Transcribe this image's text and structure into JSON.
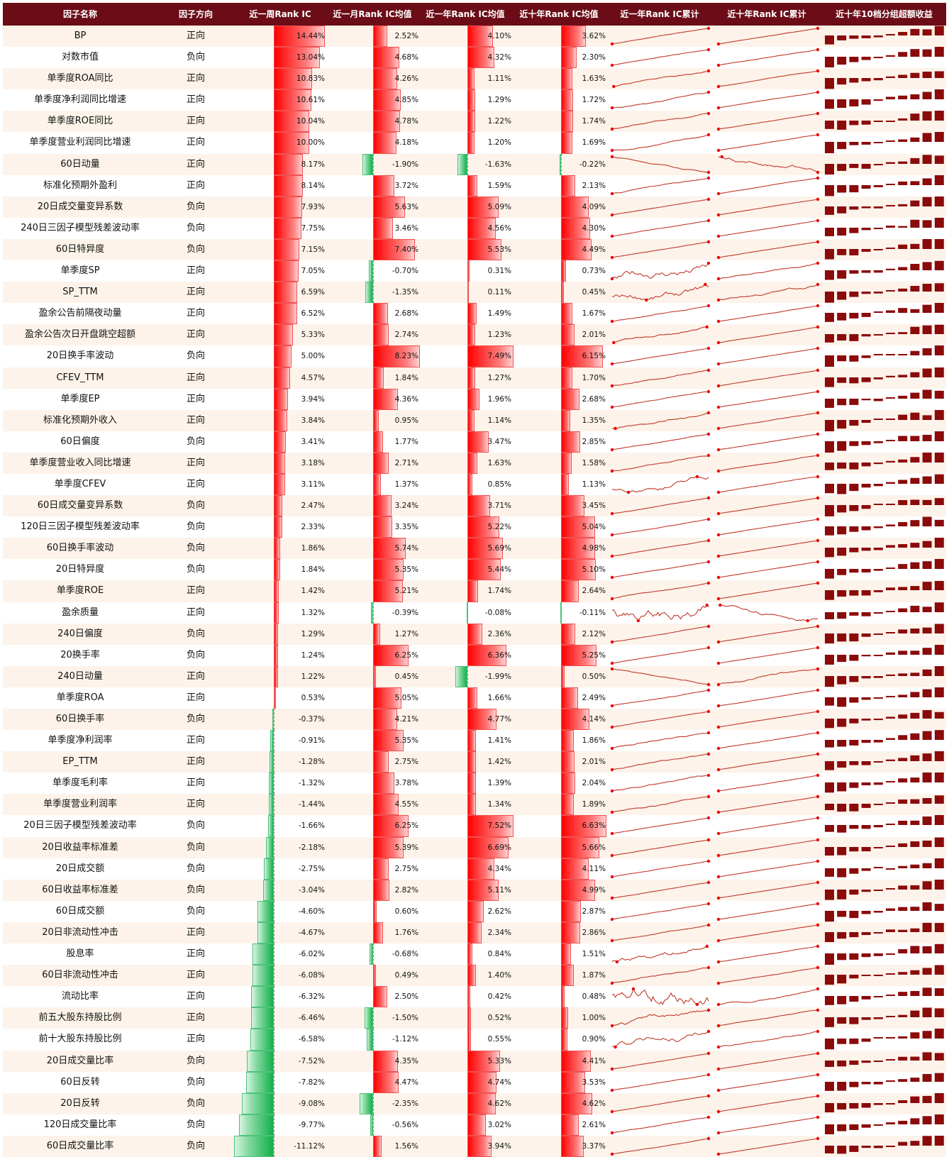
{
  "chart_data": {
    "type": "table",
    "columns": [
      "因子名称",
      "因子方向",
      "近一周Rank IC",
      "近一月Rank IC均值",
      "近一年Rank IC均值",
      "近十年Rank IC均值",
      "近一年Rank IC累计",
      "近十年Rank IC累计",
      "近十年10档分组超额收益"
    ],
    "colors": {
      "header": "#6b0c17",
      "positive": "#ff0000",
      "negative": "#12b04a",
      "sparkline": "#c0392b",
      "decile": "#8b0a0a",
      "row_alt": "#fdf3ea"
    },
    "rows": [
      [
        "BP",
        "正向",
        "14.44%",
        "2.52%",
        "4.10%",
        "3.62%"
      ],
      [
        "对数市值",
        "负向",
        "13.04%",
        "4.68%",
        "4.32%",
        "2.30%"
      ],
      [
        "单季度ROA同比",
        "正向",
        "10.83%",
        "4.26%",
        "1.11%",
        "1.63%"
      ],
      [
        "单季度净利润同比增速",
        "正向",
        "10.61%",
        "4.85%",
        "1.29%",
        "1.72%"
      ],
      [
        "单季度ROE同比",
        "正向",
        "10.04%",
        "4.78%",
        "1.22%",
        "1.74%"
      ],
      [
        "单季度营业利润同比增速",
        "正向",
        "10.00%",
        "4.18%",
        "1.20%",
        "1.69%"
      ],
      [
        "60日动量",
        "正向",
        "8.17%",
        "-1.90%",
        "-1.63%",
        "-0.22%"
      ],
      [
        "标准化预期外盈利",
        "正向",
        "8.14%",
        "3.72%",
        "1.59%",
        "2.13%"
      ],
      [
        "20日成交量变异系数",
        "负向",
        "7.93%",
        "5.63%",
        "5.09%",
        "4.09%"
      ],
      [
        "240日三因子模型残差波动率",
        "负向",
        "7.75%",
        "3.46%",
        "4.56%",
        "4.30%"
      ],
      [
        "60日特异度",
        "负向",
        "7.15%",
        "7.40%",
        "5.53%",
        "4.49%"
      ],
      [
        "单季度SP",
        "正向",
        "7.05%",
        "-0.70%",
        "0.31%",
        "0.73%"
      ],
      [
        "SP_TTM",
        "正向",
        "6.59%",
        "-1.35%",
        "0.11%",
        "0.45%"
      ],
      [
        "盈余公告前隔夜动量",
        "正向",
        "6.52%",
        "2.68%",
        "1.49%",
        "1.67%"
      ],
      [
        "盈余公告次日开盘跳空超额",
        "正向",
        "5.33%",
        "2.74%",
        "1.23%",
        "2.01%"
      ],
      [
        "20日换手率波动",
        "负向",
        "5.00%",
        "8.23%",
        "7.49%",
        "6.15%"
      ],
      [
        "CFEV_TTM",
        "正向",
        "4.57%",
        "1.84%",
        "1.27%",
        "1.70%"
      ],
      [
        "单季度EP",
        "正向",
        "3.94%",
        "4.36%",
        "1.96%",
        "2.68%"
      ],
      [
        "标准化预期外收入",
        "正向",
        "3.84%",
        "0.95%",
        "1.14%",
        "1.35%"
      ],
      [
        "60日偏度",
        "负向",
        "3.41%",
        "1.77%",
        "3.47%",
        "2.85%"
      ],
      [
        "单季度营业收入同比增速",
        "正向",
        "3.18%",
        "2.71%",
        "1.63%",
        "1.58%"
      ],
      [
        "单季度CFEV",
        "正向",
        "3.11%",
        "1.37%",
        "0.85%",
        "1.13%"
      ],
      [
        "60日成交量变异系数",
        "负向",
        "2.47%",
        "3.24%",
        "3.71%",
        "3.45%"
      ],
      [
        "120日三因子模型残差波动率",
        "负向",
        "2.33%",
        "3.35%",
        "5.22%",
        "5.04%"
      ],
      [
        "60日换手率波动",
        "负向",
        "1.86%",
        "5.74%",
        "5.69%",
        "4.98%"
      ],
      [
        "20日特异度",
        "负向",
        "1.84%",
        "5.35%",
        "5.44%",
        "5.10%"
      ],
      [
        "单季度ROE",
        "正向",
        "1.42%",
        "5.21%",
        "1.74%",
        "2.64%"
      ],
      [
        "盈余质量",
        "正向",
        "1.32%",
        "-0.39%",
        "-0.08%",
        "-0.11%"
      ],
      [
        "240日偏度",
        "负向",
        "1.29%",
        "1.27%",
        "2.36%",
        "2.12%"
      ],
      [
        "20换手率",
        "负向",
        "1.24%",
        "6.25%",
        "6.36%",
        "5.25%"
      ],
      [
        "240日动量",
        "正向",
        "1.22%",
        "0.45%",
        "-1.99%",
        "0.50%"
      ],
      [
        "单季度ROA",
        "正向",
        "0.53%",
        "5.05%",
        "1.66%",
        "2.49%"
      ],
      [
        "60日换手率",
        "负向",
        "-0.37%",
        "4.21%",
        "4.77%",
        "4.14%"
      ],
      [
        "单季度净利润率",
        "正向",
        "-0.91%",
        "5.35%",
        "1.41%",
        "1.86%"
      ],
      [
        "EP_TTM",
        "正向",
        "-1.28%",
        "2.75%",
        "1.42%",
        "2.01%"
      ],
      [
        "单季度毛利率",
        "正向",
        "-1.32%",
        "3.78%",
        "1.39%",
        "2.04%"
      ],
      [
        "单季度营业利润率",
        "正向",
        "-1.44%",
        "4.55%",
        "1.34%",
        "1.89%"
      ],
      [
        "20日三因子模型残差波动率",
        "负向",
        "-1.66%",
        "6.25%",
        "7.52%",
        "6.63%"
      ],
      [
        "20日收益率标准差",
        "负向",
        "-2.18%",
        "5.39%",
        "6.69%",
        "5.66%"
      ],
      [
        "20日成交额",
        "负向",
        "-2.75%",
        "2.75%",
        "4.34%",
        "4.11%"
      ],
      [
        "60日收益率标准差",
        "负向",
        "-3.04%",
        "2.82%",
        "5.11%",
        "4.99%"
      ],
      [
        "60日成交额",
        "负向",
        "-4.60%",
        "0.60%",
        "2.62%",
        "2.87%"
      ],
      [
        "20日非流动性冲击",
        "正向",
        "-4.67%",
        "1.76%",
        "2.34%",
        "2.86%"
      ],
      [
        "股息率",
        "正向",
        "-6.02%",
        "-0.68%",
        "0.84%",
        "1.51%"
      ],
      [
        "60日非流动性冲击",
        "正向",
        "-6.08%",
        "0.49%",
        "1.40%",
        "1.87%"
      ],
      [
        "流动比率",
        "正向",
        "-6.32%",
        "2.50%",
        "0.42%",
        "0.48%"
      ],
      [
        "前五大股东持股比例",
        "正向",
        "-6.46%",
        "-1.50%",
        "0.52%",
        "1.00%"
      ],
      [
        "前十大股东持股比例",
        "正向",
        "-6.58%",
        "-1.12%",
        "0.55%",
        "0.90%"
      ],
      [
        "20日成交量比率",
        "负向",
        "-7.52%",
        "4.35%",
        "5.33%",
        "4.41%"
      ],
      [
        "60日反转",
        "负向",
        "-7.82%",
        "4.47%",
        "4.74%",
        "3.53%"
      ],
      [
        "20日反转",
        "负向",
        "-9.08%",
        "-2.35%",
        "4.62%",
        "4.62%"
      ],
      [
        "120日成交量比率",
        "负向",
        "-9.77%",
        "-0.56%",
        "3.02%",
        "2.61%"
      ],
      [
        "60日成交量比率",
        "负向",
        "-11.12%",
        "1.56%",
        "3.94%",
        "3.37%"
      ]
    ]
  }
}
